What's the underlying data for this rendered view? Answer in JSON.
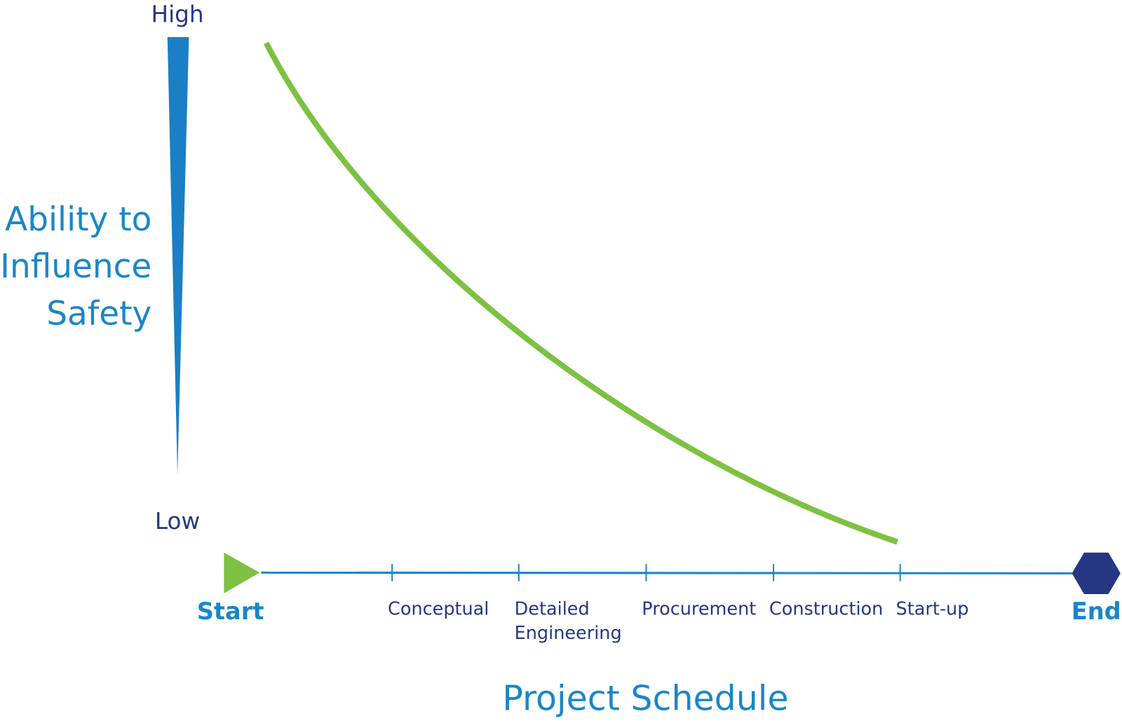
{
  "axis": {
    "high": "High",
    "low": "Low",
    "label": [
      "Ability to",
      "Influence",
      "Safety"
    ]
  },
  "schedule": {
    "start": "Start",
    "end": "End",
    "phases": [
      {
        "lines": [
          "Conceptual"
        ]
      },
      {
        "lines": [
          "Detailed",
          "Engineering"
        ]
      },
      {
        "lines": [
          "Procurement"
        ]
      },
      {
        "lines": [
          "Construction"
        ]
      },
      {
        "lines": [
          "Start-up"
        ]
      }
    ],
    "title": "Project Schedule"
  }
}
